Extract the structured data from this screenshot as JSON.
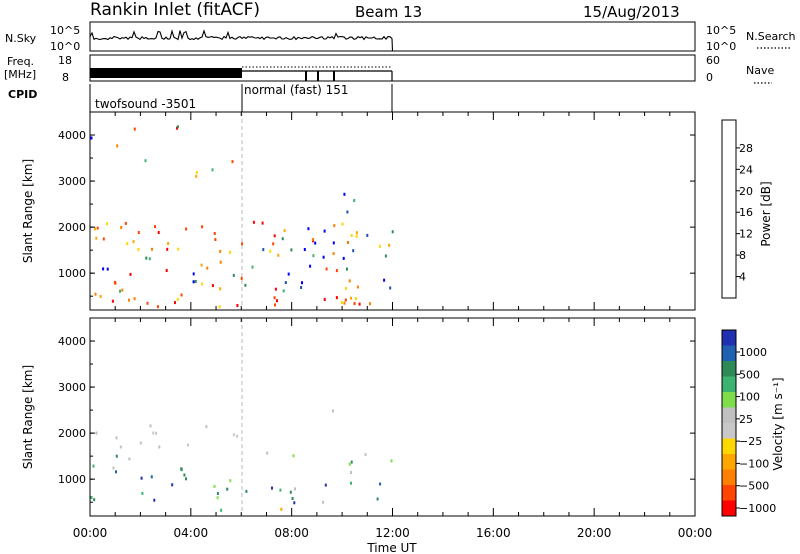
{
  "header": {
    "station_title": "Rankin Inlet (fitACF)",
    "beam": "Beam 13",
    "date": "15/Aug/2013"
  },
  "strips": {
    "nsky": {
      "label": "N.Sky",
      "ticks": [
        "10^5",
        "10^0"
      ],
      "right_ticks": [
        "10^5",
        "10^0"
      ],
      "right_label": "N.Search"
    },
    "freq": {
      "label_top": "Freq.",
      "label_bottom": "[MHz]",
      "ticks": [
        "18",
        "8"
      ],
      "right_ticks": [
        "60",
        "0"
      ],
      "right_label": "Nave"
    },
    "cpid": {
      "label": "CPID",
      "segments": [
        {
          "name": "twofsound -3501",
          "start": 0.0,
          "end": 6.0
        },
        {
          "name": "normal (fast) 151",
          "start": 6.0,
          "end": 12.0
        }
      ]
    }
  },
  "colors": {
    "power": [
      "#0000ff",
      "#1f4fb4",
      "#2e8b57",
      "#3cb371",
      "#ffd700",
      "#ffa500",
      "#ff7f00",
      "#ff4500",
      "#ff0000"
    ],
    "velocity": [
      "#2030b0",
      "#2060b0",
      "#2e8b57",
      "#3cb371",
      "#7fdd4c",
      "#c0c0c0",
      "#c8c8c8",
      "#ffd700",
      "#ffa500",
      "#ff7f00",
      "#ff4500",
      "#ff0000"
    ]
  },
  "chart_data": [
    {
      "type": "heatmap",
      "name": "power",
      "ylabel": "Slant Range [km]",
      "yticks": [
        "1000",
        "2000",
        "3000",
        "4000"
      ],
      "ylim": [
        200,
        4500
      ],
      "xlim": [
        0,
        24
      ],
      "colorbar_label": "Power [dB]",
      "colorbar_ticks": [
        "4",
        "8",
        "12",
        "16",
        "20",
        "24",
        "28"
      ],
      "scatter_regions": [
        {
          "t0": 0.0,
          "t1": 12.0,
          "r0": 300,
          "r1": 2150,
          "level": 0.6
        },
        {
          "t0": 0.0,
          "t1": 3.5,
          "r0": 3300,
          "r1": 4300,
          "level": 0.2
        },
        {
          "t0": 4.0,
          "t1": 6.0,
          "r0": 2600,
          "r1": 3500,
          "level": 0.25
        },
        {
          "t0": 9.5,
          "t1": 10.5,
          "r0": 2200,
          "r1": 2800,
          "level": 0.5
        }
      ]
    },
    {
      "type": "heatmap",
      "name": "velocity",
      "ylabel": "Slant Range [km]",
      "yticks": [
        "1000",
        "2000",
        "3000",
        "4000"
      ],
      "ylim": [
        200,
        4500
      ],
      "xlim": [
        0,
        24
      ],
      "colorbar_label": "Velocity [m s⁻¹]",
      "colorbar_ticks": [
        "1000",
        "500",
        "100",
        "25",
        "−25",
        "−100",
        "−500",
        "−1000"
      ],
      "scatter_regions": [
        {
          "t0": 0.0,
          "t1": 6.0,
          "r0": 1700,
          "r1": 2200,
          "level": 0.45
        },
        {
          "t0": 0.0,
          "t1": 12.0,
          "r0": 300,
          "r1": 1600,
          "level": 0.3
        },
        {
          "t0": 9.5,
          "t1": 10.5,
          "r0": 2200,
          "r1": 2800,
          "level": 0.25
        }
      ]
    }
  ],
  "xaxis": {
    "ticks": [
      "00:00",
      "04:00",
      "08:00",
      "12:00",
      "16:00",
      "20:00",
      "00:00"
    ],
    "label": "Time UT"
  }
}
